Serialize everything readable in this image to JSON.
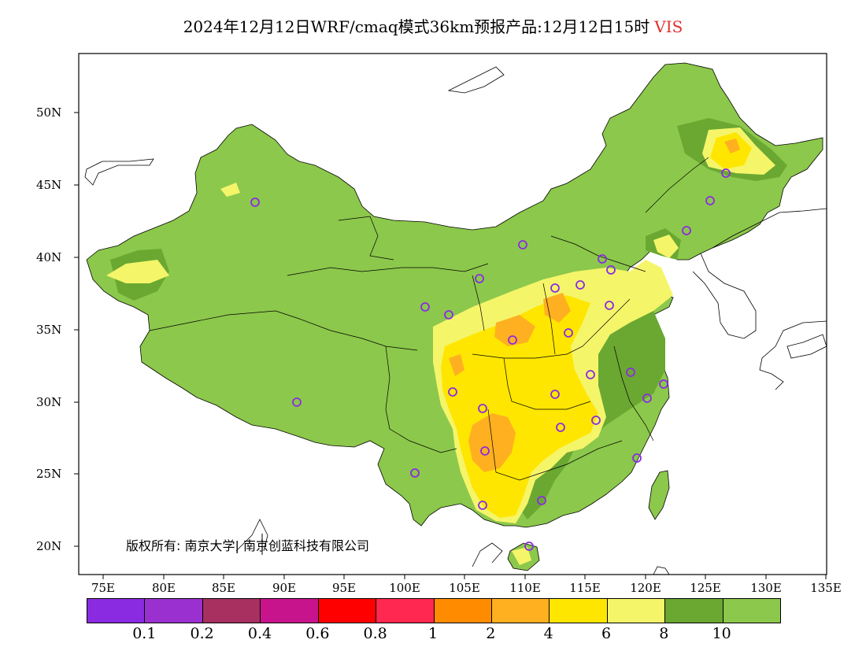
{
  "title": {
    "main": "2024年12月12日WRF/cmaq模式36km预报产品:12月12日15时",
    "variable": "VIS",
    "variable_color": "#e03030"
  },
  "copyright": "版权所有: 南京大学| 南京创蓝科技有限公司",
  "lat_labels": [
    "50N",
    "45N",
    "40N",
    "35N",
    "30N",
    "25N",
    "20N"
  ],
  "lon_labels": [
    "75E",
    "80E",
    "85E",
    "90E",
    "95E",
    "100E",
    "105E",
    "110E",
    "115E",
    "120E",
    "125E",
    "130E",
    "135E"
  ],
  "colorbar": {
    "colors": [
      "#8a2be2",
      "#9b30d0",
      "#a83060",
      "#c8148c",
      "#ff0000",
      "#ff2850",
      "#ff8c00",
      "#ffb020",
      "#ffe600",
      "#f5f56a",
      "#6aa832",
      "#8cc84b"
    ],
    "labels": [
      "0.1",
      "0.2",
      "0.4",
      "0.6",
      "0.8",
      "1",
      "2",
      "4",
      "6",
      "8",
      "10"
    ]
  },
  "map_colors": {
    "land_default": "#8cc84b",
    "dark_green": "#6aa832",
    "light_yellow": "#f5f56a",
    "yellow": "#ffe600",
    "orange": "#ffb020",
    "station_marker": "#8a2be2"
  }
}
